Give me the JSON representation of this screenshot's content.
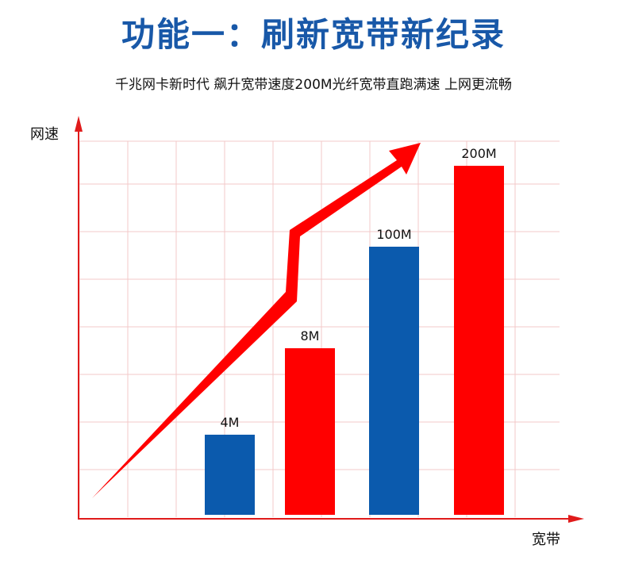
{
  "header": {
    "title": "功能一：刷新宽带新纪录",
    "subtitle": "千兆网卡新时代 飙升宽带速度200M光纤宽带直跑满速 上网更流畅"
  },
  "chart_data": {
    "type": "bar",
    "title": "",
    "xlabel": "宽带",
    "ylabel": "网速",
    "categories": [
      "4M",
      "8M",
      "100M",
      "200M"
    ],
    "values": [
      4,
      8,
      100,
      200
    ],
    "data_labels": [
      "4M",
      "8M",
      "100M",
      "200M"
    ],
    "bar_colors": [
      "#0b5aad",
      "#ff0000",
      "#0b5aad",
      "#ff0000"
    ],
    "grid": true,
    "legend": "none",
    "trend_arrow": true
  },
  "colors": {
    "title": "#1858a8",
    "axis": "#e01b1b",
    "grid": "#f3c8c8",
    "blue_bar": "#0b5aad",
    "red_bar": "#ff0000",
    "arrow": "#ff0000"
  }
}
